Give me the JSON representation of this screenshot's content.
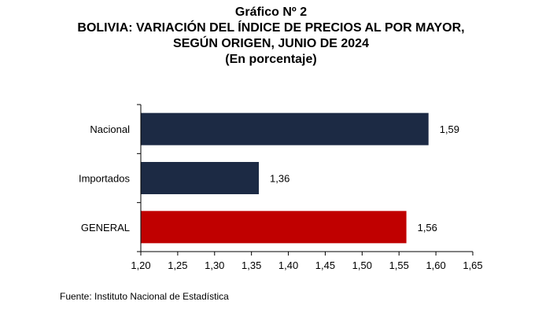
{
  "header": {
    "title_line1": "Gráfico Nº 2",
    "title_line2": "BOLIVIA: VARIACIÓN DEL ÍNDICE DE PRECIOS AL POR MAYOR,",
    "title_line3": "SEGÚN ORIGEN, JUNIO DE 2024",
    "title_line4": "(En porcentaje)"
  },
  "chart_data": {
    "type": "bar",
    "orientation": "horizontal",
    "categories": [
      "Nacional",
      "Importados",
      "GENERAL"
    ],
    "values": [
      1.59,
      1.36,
      1.56
    ],
    "value_labels": [
      "1,59",
      "1,36",
      "1,56"
    ],
    "bar_colors": [
      "#1c2a44",
      "#1c2a44",
      "#c00000"
    ],
    "xlim": [
      1.2,
      1.65
    ],
    "xticks": [
      1.2,
      1.25,
      1.3,
      1.35,
      1.4,
      1.45,
      1.5,
      1.55,
      1.6,
      1.65
    ],
    "xtick_labels": [
      "1,20",
      "1,25",
      "1,30",
      "1,35",
      "1,40",
      "1,45",
      "1,50",
      "1,55",
      "1,60",
      "1,65"
    ],
    "grid": false,
    "legend": "none"
  },
  "footer": {
    "source": "Fuente: Instituto Nacional de Estadística"
  }
}
